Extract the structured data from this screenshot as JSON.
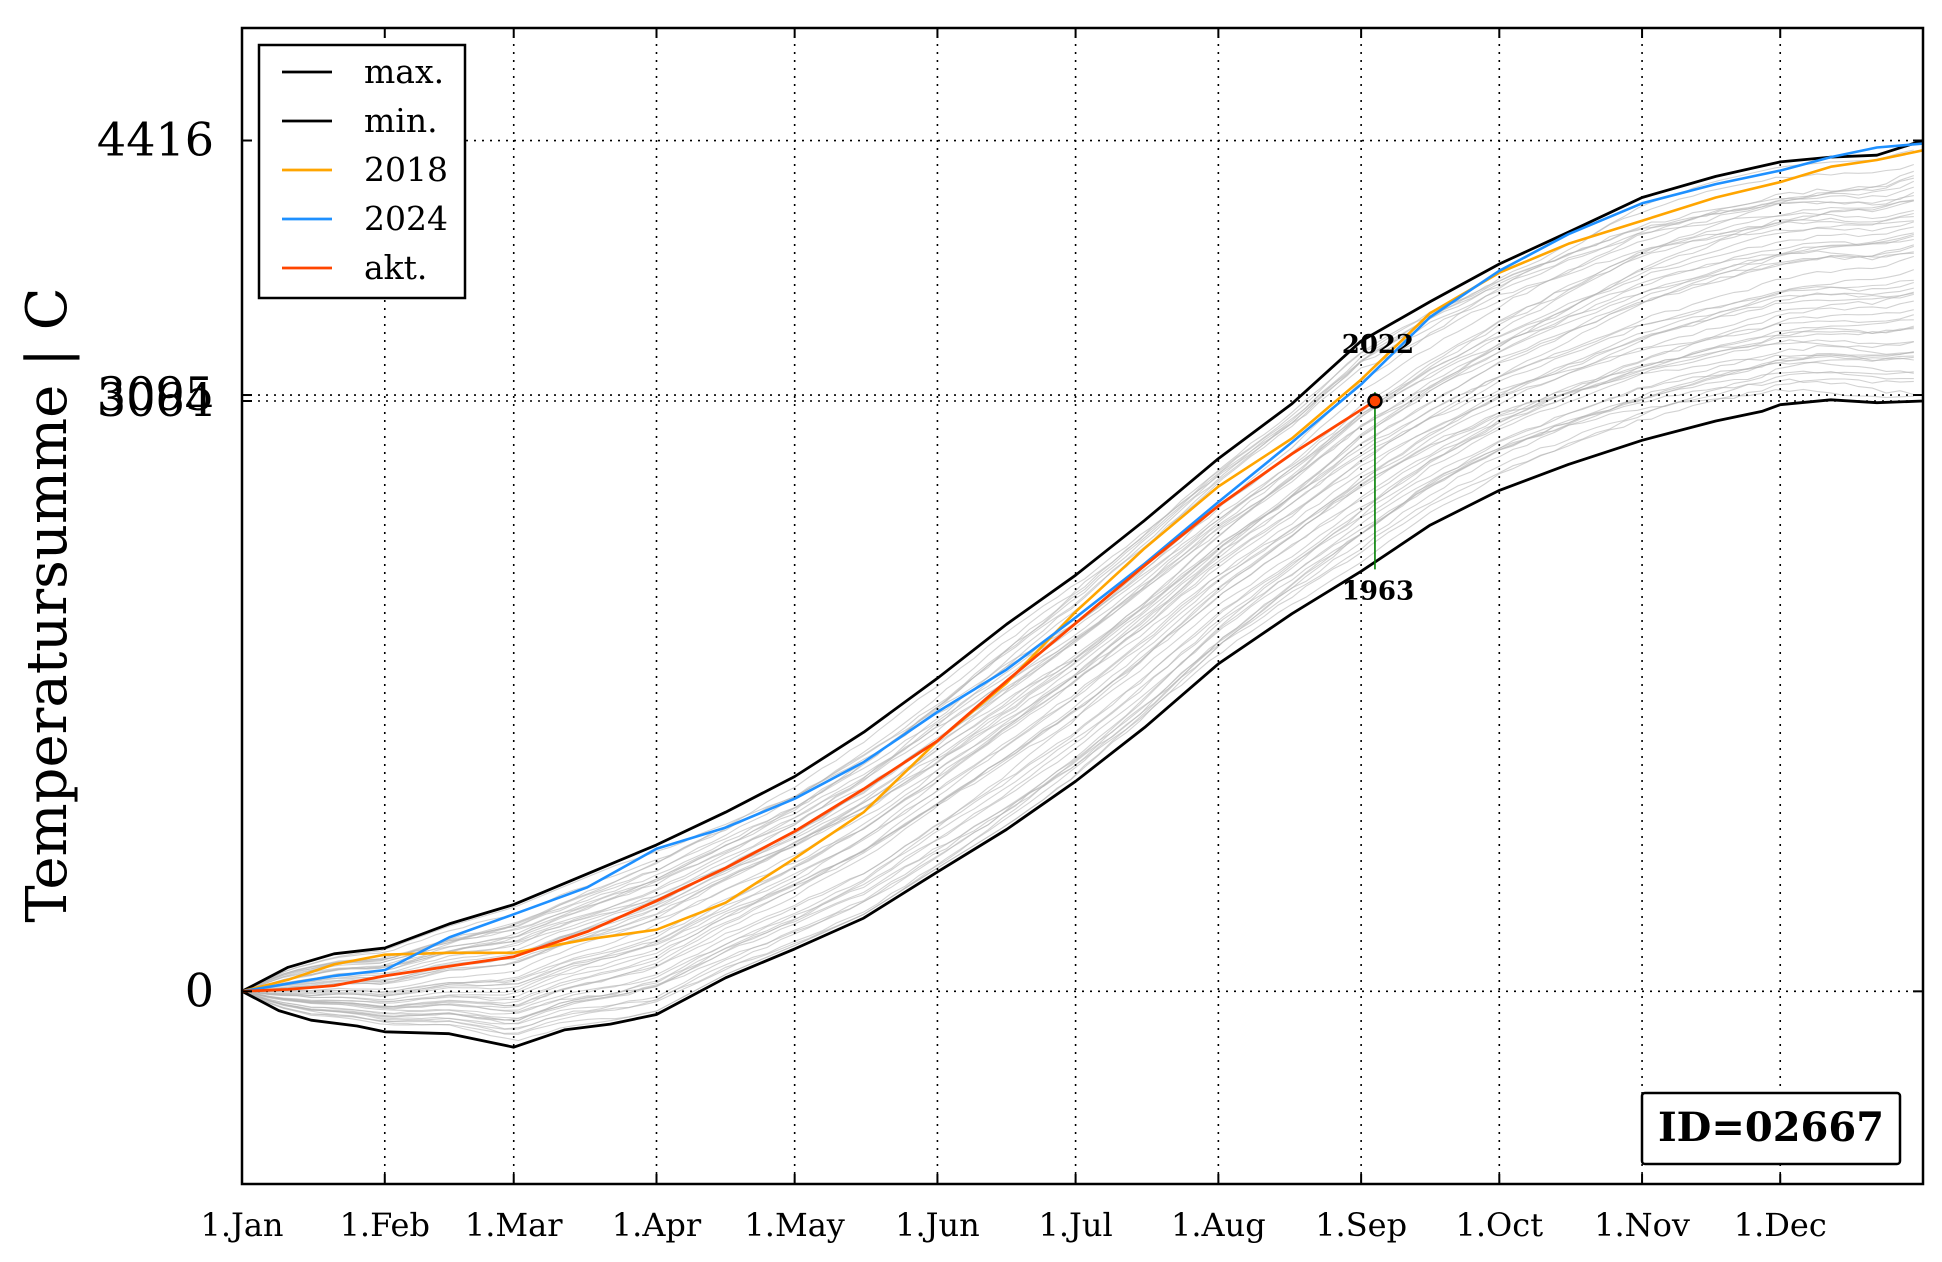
{
  "chart_data": {
    "type": "line",
    "title": "",
    "xlabel": "",
    "ylabel": "Temperatursumme | C",
    "x_tick_labels": [
      "1.Jan",
      "1.Feb",
      "1.Mar",
      "1.Apr",
      "1.May",
      "1.Jun",
      "1.Jul",
      "1.Aug",
      "1.Sep",
      "1.Oct",
      "1.Nov",
      "1.Dec"
    ],
    "x_tick_days": [
      0,
      31,
      59,
      90,
      120,
      151,
      181,
      212,
      243,
      273,
      304,
      334
    ],
    "xlim_days": [
      0,
      365
    ],
    "ylim": [
      -1000,
      5000
    ],
    "y_ticks": [
      {
        "value": 0,
        "label": "0"
      },
      {
        "value": 3064,
        "label": "3064"
      },
      {
        "value": 3095,
        "label": "3095"
      },
      {
        "value": 4416,
        "label": "4416"
      }
    ],
    "grid": true,
    "legend_position": "upper-left",
    "legend": [
      {
        "label": "max.",
        "color": "#000000"
      },
      {
        "label": "min.",
        "color": "#000000"
      },
      {
        "label": "2018",
        "color": "#FFA500"
      },
      {
        "label": "2024",
        "color": "#1E90FF"
      },
      {
        "label": "akt.",
        "color": "#FF4500"
      }
    ],
    "series": [
      {
        "name": "max.",
        "color": "#000000",
        "x": [
          0,
          10,
          20,
          31,
          45,
          59,
          75,
          90,
          105,
          120,
          135,
          151,
          166,
          181,
          196,
          212,
          228,
          243,
          258,
          273,
          288,
          304,
          320,
          334,
          345,
          355,
          365
        ],
        "y": [
          0,
          125,
          195,
          225,
          350,
          450,
          610,
          760,
          930,
          1115,
          1345,
          1625,
          1905,
          2160,
          2445,
          2765,
          3050,
          3375,
          3580,
          3775,
          3940,
          4120,
          4230,
          4305,
          4330,
          4340,
          4416
        ]
      },
      {
        "name": "min.",
        "color": "#000000",
        "x": [
          0,
          8,
          15,
          25,
          31,
          45,
          59,
          70,
          80,
          90,
          105,
          120,
          135,
          151,
          166,
          181,
          196,
          212,
          228,
          243,
          258,
          273,
          288,
          304,
          320,
          330,
          334,
          345,
          355,
          365
        ],
        "y": [
          0,
          -100,
          -150,
          -180,
          -210,
          -220,
          -290,
          -200,
          -170,
          -120,
          70,
          220,
          380,
          620,
          840,
          1090,
          1370,
          1700,
          1960,
          2180,
          2420,
          2600,
          2735,
          2860,
          2960,
          3010,
          3045,
          3070,
          3055,
          3064
        ]
      },
      {
        "name": "2018",
        "color": "#FFA500",
        "x": [
          0,
          10,
          20,
          31,
          45,
          59,
          75,
          90,
          105,
          120,
          135,
          151,
          166,
          181,
          196,
          212,
          228,
          243,
          258,
          273,
          288,
          304,
          320,
          334,
          345,
          355,
          365
        ],
        "y": [
          0,
          60,
          140,
          190,
          200,
          200,
          270,
          320,
          460,
          690,
          930,
          1300,
          1600,
          1970,
          2300,
          2620,
          2870,
          3175,
          3520,
          3730,
          3880,
          4000,
          4120,
          4200,
          4280,
          4315,
          4365
        ]
      },
      {
        "name": "2024",
        "color": "#1E90FF",
        "x": [
          0,
          10,
          20,
          31,
          45,
          59,
          75,
          90,
          105,
          120,
          135,
          151,
          166,
          181,
          196,
          212,
          228,
          243,
          258,
          273,
          288,
          304,
          320,
          334,
          345,
          355,
          365
        ],
        "y": [
          0,
          40,
          80,
          110,
          280,
          400,
          540,
          740,
          850,
          1000,
          1190,
          1450,
          1670,
          1940,
          2220,
          2540,
          2850,
          3150,
          3500,
          3740,
          3930,
          4090,
          4190,
          4260,
          4330,
          4380,
          4400
        ]
      },
      {
        "name": "akt.",
        "color": "#FF4500",
        "x": [
          0,
          10,
          20,
          31,
          45,
          59,
          75,
          90,
          105,
          120,
          135,
          151,
          166,
          181,
          196,
          212,
          228,
          246
        ],
        "y": [
          0,
          10,
          30,
          80,
          130,
          180,
          310,
          470,
          640,
          830,
          1050,
          1300,
          1610,
          1910,
          2210,
          2520,
          2790,
          3064
        ]
      }
    ],
    "highlight_point": {
      "x": 246,
      "y": 3064
    },
    "range_line": {
      "x": 246,
      "y_top": 3110,
      "y_bottom": 2190,
      "color": "#008000"
    },
    "annotations": [
      {
        "text": "2022",
        "x": 246,
        "y": 3350,
        "position": "above"
      },
      {
        "text": "1963",
        "x": 246,
        "y": 2190,
        "position": "below"
      }
    ],
    "info_box": "ID=02667"
  }
}
